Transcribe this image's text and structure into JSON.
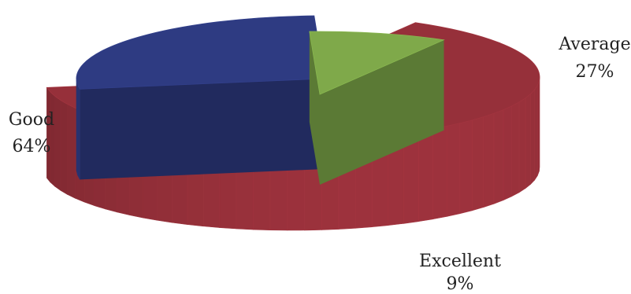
{
  "chart_data": {
    "type": "pie",
    "style": "3d-exploded",
    "categories": [
      "Good",
      "Average",
      "Excellent"
    ],
    "values": [
      64,
      27,
      9
    ],
    "value_labels": [
      "64%",
      "27%",
      "9%"
    ],
    "colors": [
      "#96303A",
      "#2E3B82",
      "#7FA94A"
    ],
    "legend": "none"
  }
}
